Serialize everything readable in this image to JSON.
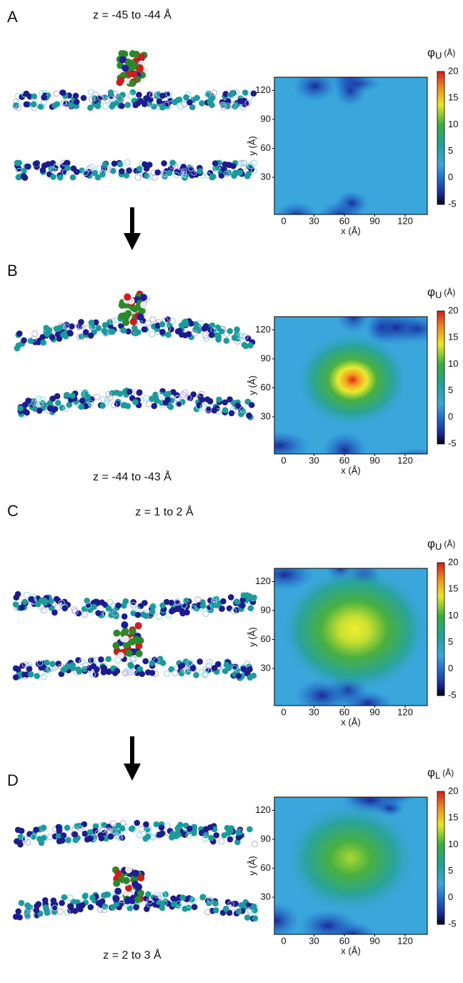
{
  "panels": [
    {
      "label": "A",
      "z_range": "z = -45 to -44 Å",
      "map": {
        "symbol": "φ",
        "subscript": "U",
        "unit": "(Å)",
        "x_axis_label": "x (Å)",
        "y_axis_label": "y (Å)",
        "xticks": [
          "0",
          "30",
          "60",
          "90",
          "120"
        ],
        "yticks": [
          "30",
          "60",
          "90",
          "120"
        ],
        "colorbar_ticks": [
          "20",
          "15",
          "10",
          "5",
          "0",
          "-5"
        ]
      }
    },
    {
      "label": "B",
      "z_range": "z = -44 to -43 Å",
      "map": {
        "symbol": "φ",
        "subscript": "U",
        "unit": "(Å)",
        "x_axis_label": "x (Å)",
        "y_axis_label": "y (Å)",
        "xticks": [
          "0",
          "30",
          "60",
          "90",
          "120"
        ],
        "yticks": [
          "30",
          "60",
          "90",
          "120"
        ],
        "colorbar_ticks": [
          "20",
          "15",
          "10",
          "5",
          "0",
          "-5"
        ]
      }
    },
    {
      "label": "C",
      "z_range": "z = 1 to 2 Å",
      "map": {
        "symbol": "φ",
        "subscript": "U",
        "unit": "(Å)",
        "x_axis_label": "x (Å)",
        "y_axis_label": "y (Å)",
        "xticks": [
          "0",
          "30",
          "60",
          "90",
          "120"
        ],
        "yticks": [
          "30",
          "60",
          "90",
          "120"
        ],
        "colorbar_ticks": [
          "20",
          "15",
          "10",
          "5",
          "0",
          "-5"
        ]
      }
    },
    {
      "label": "D",
      "z_range": "z = 2 to 3 Å",
      "map": {
        "symbol": "φ",
        "subscript": "L",
        "unit": "(Å)",
        "x_axis_label": "x (Å)",
        "y_axis_label": "y (Å)",
        "xticks": [
          "0",
          "30",
          "60",
          "90",
          "120"
        ],
        "yticks": [
          "30",
          "60",
          "90",
          "120"
        ],
        "colorbar_ticks": [
          "20",
          "15",
          "10",
          "5",
          "0",
          "-5"
        ]
      }
    }
  ]
}
